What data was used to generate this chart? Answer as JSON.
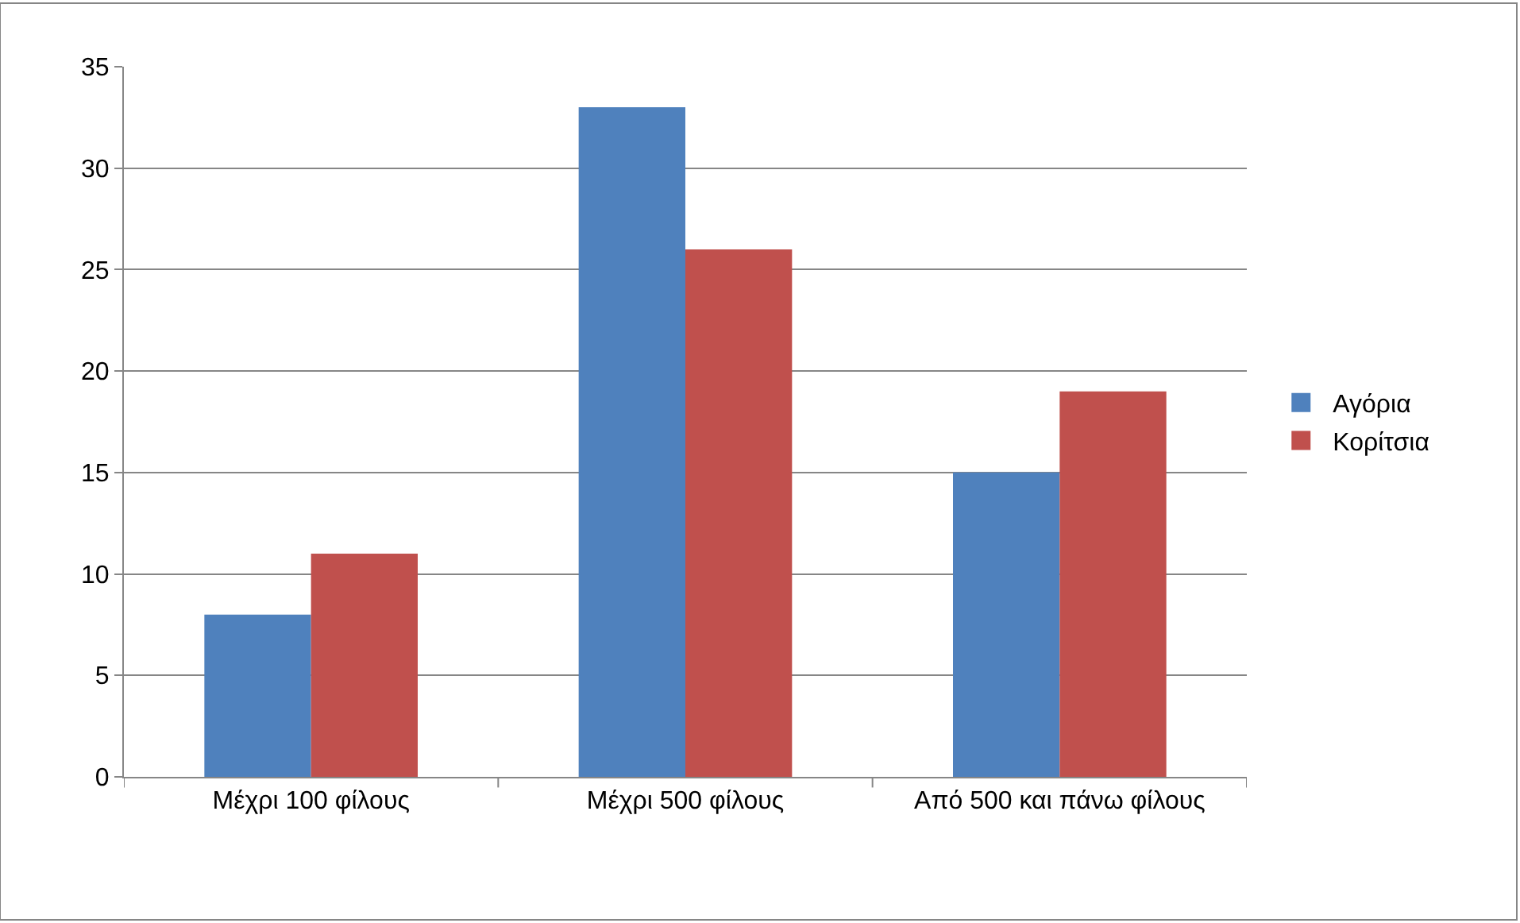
{
  "chart_data": {
    "type": "bar",
    "categories": [
      "Μέχρι 100 φίλους",
      "Μέχρι 500 φίλους",
      "Από 500 και πάνω φίλους"
    ],
    "series": [
      {
        "name": "Αγόρια",
        "color": "#4f81bd",
        "values": [
          8,
          33,
          15
        ]
      },
      {
        "name": "Κορίτσια",
        "color": "#c0504d",
        "values": [
          11,
          26,
          19
        ]
      }
    ],
    "ylim": [
      0,
      35
    ],
    "yticks": [
      0,
      5,
      10,
      15,
      20,
      25,
      30,
      35
    ],
    "grid": "y",
    "legend": "right"
  }
}
